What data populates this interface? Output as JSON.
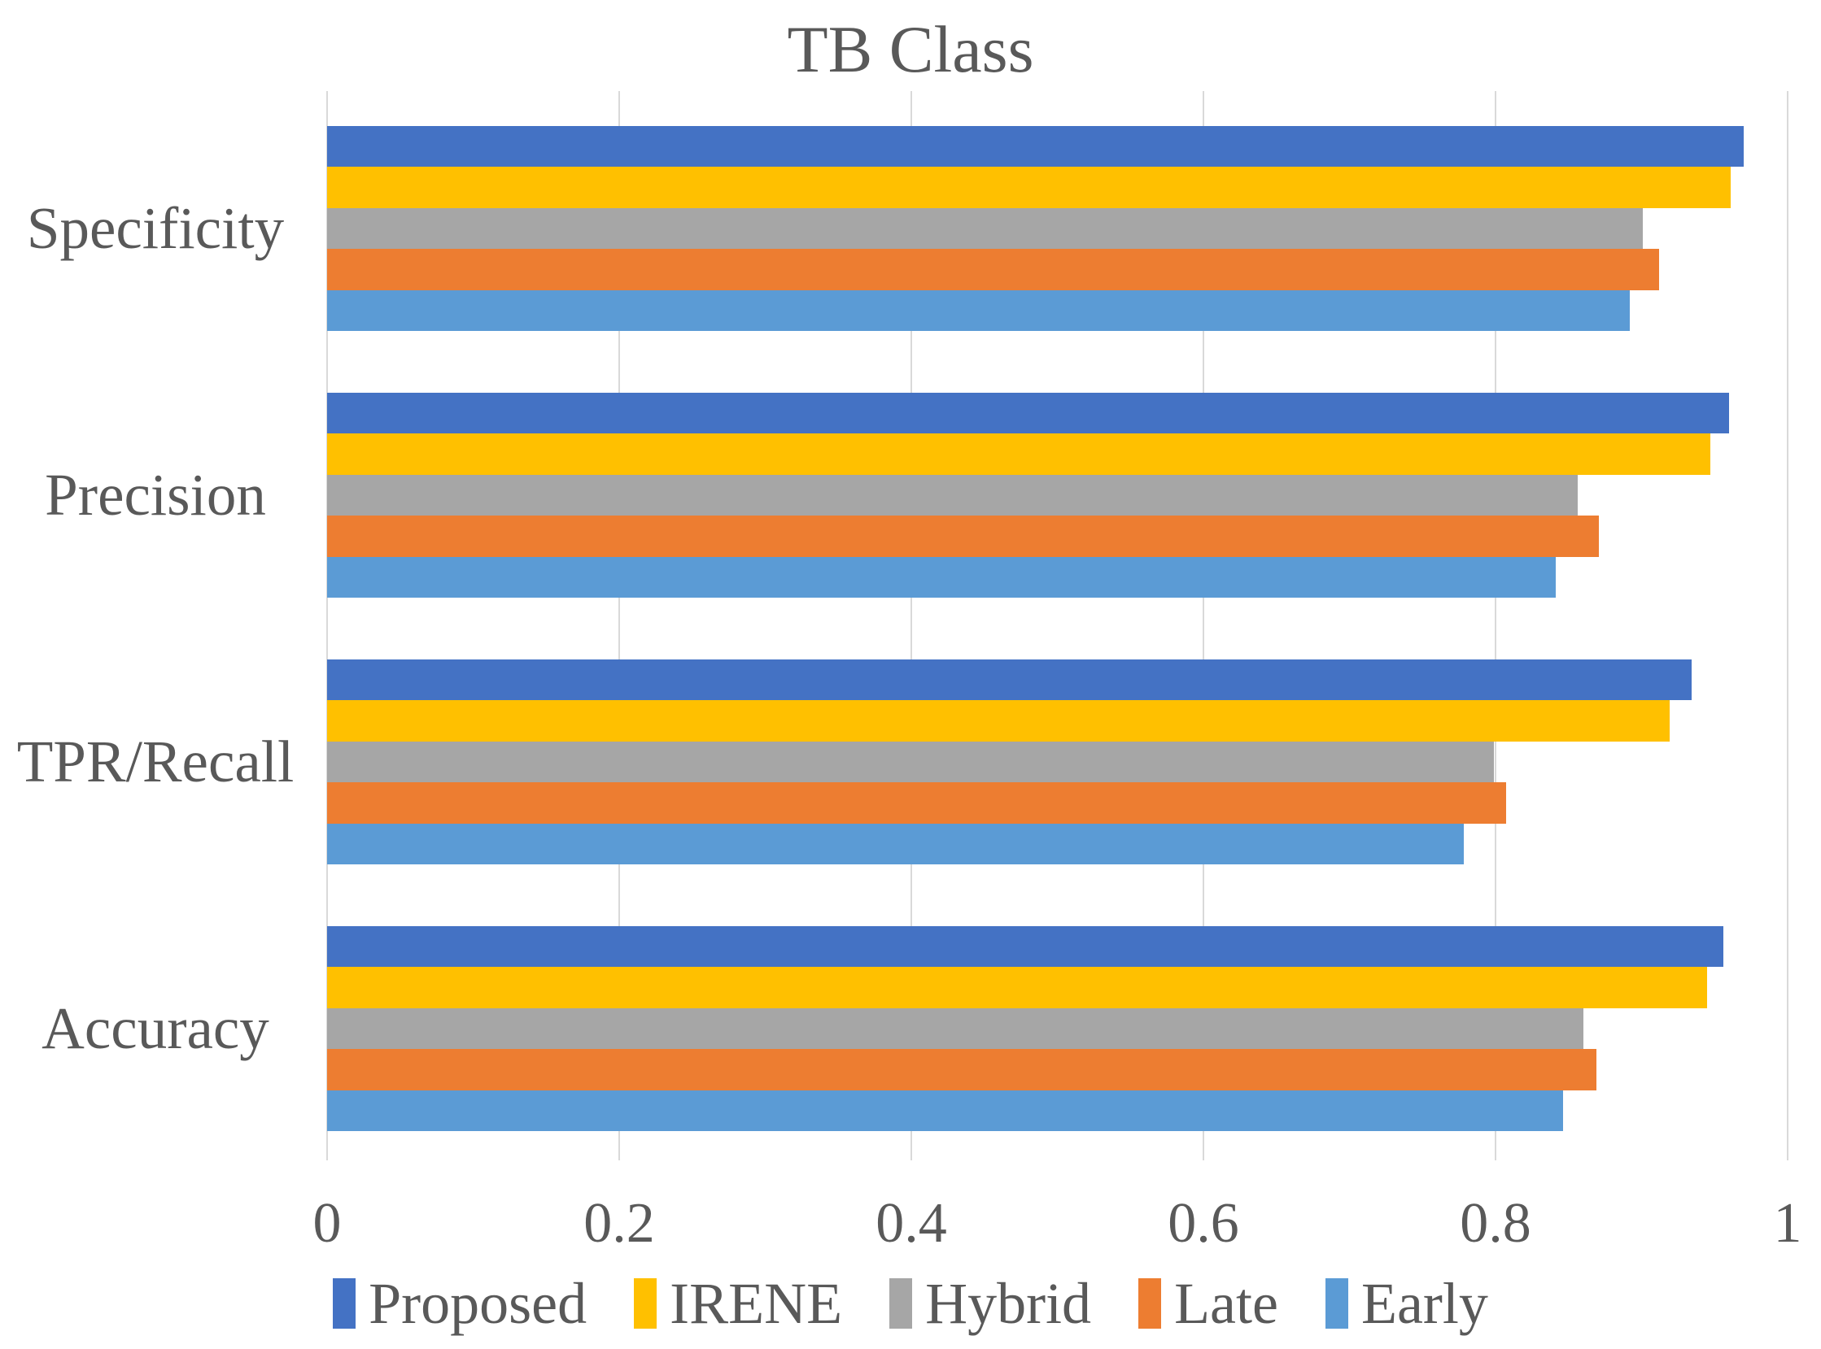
{
  "chart_data": {
    "type": "bar",
    "orientation": "horizontal",
    "title": "TB Class",
    "categories": [
      "Specificity",
      "Precision",
      "TPR/Recall",
      "Accuracy"
    ],
    "series": [
      {
        "name": "Proposed",
        "color": "#4472C4",
        "values": [
          0.97,
          0.96,
          0.934,
          0.956
        ]
      },
      {
        "name": "IRENE",
        "color": "#FFC000",
        "values": [
          0.961,
          0.947,
          0.919,
          0.945
        ]
      },
      {
        "name": "Hybrid",
        "color": "#A6A6A6",
        "values": [
          0.901,
          0.856,
          0.799,
          0.86
        ]
      },
      {
        "name": "Late",
        "color": "#ED7D31",
        "values": [
          0.912,
          0.871,
          0.807,
          0.869
        ]
      },
      {
        "name": "Early",
        "color": "#5B9BD5",
        "values": [
          0.892,
          0.841,
          0.778,
          0.846
        ]
      }
    ],
    "x_axis": {
      "min": 0,
      "max": 1,
      "ticks": [
        0,
        0.2,
        0.4,
        0.6,
        0.8,
        1
      ],
      "tick_labels": [
        "0",
        "0.2",
        "0.4",
        "0.6",
        "0.8",
        "1"
      ]
    },
    "legend": {
      "position": "bottom",
      "entries": [
        "Proposed",
        "IRENE",
        "Hybrid",
        "Late",
        "Early"
      ]
    },
    "grid": "vertical",
    "text_color": "#595959",
    "gridline_color": "#D9D9D9"
  }
}
